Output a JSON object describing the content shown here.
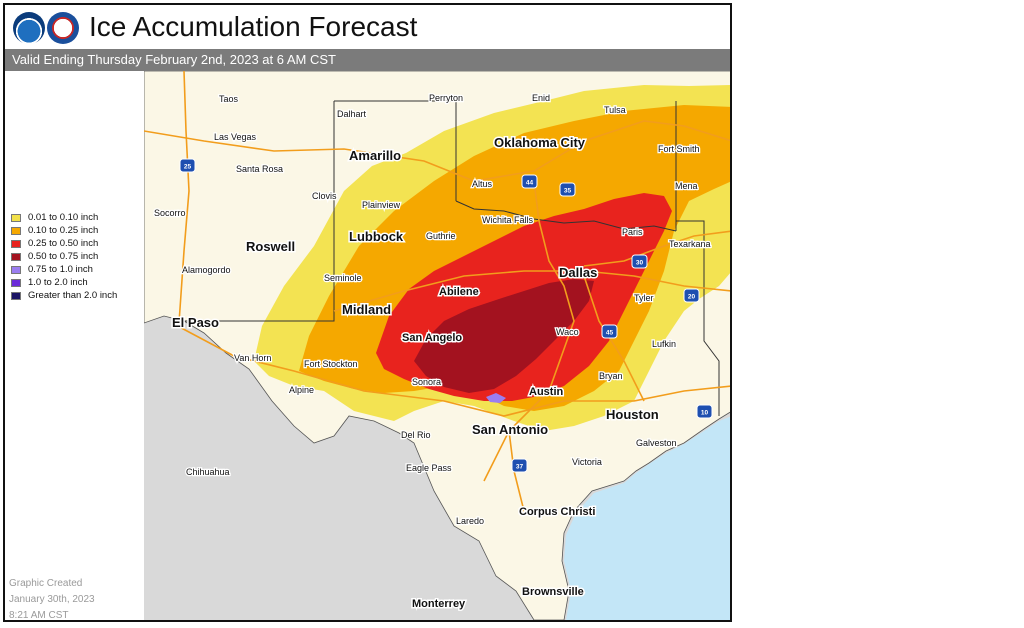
{
  "title": "Ice Accumulation Forecast",
  "valid": "Valid Ending Thursday February 2nd, 2023 at 6 AM CST",
  "logos": {
    "left": "noaa-logo",
    "right": "nws-logo"
  },
  "legend": [
    {
      "label": "0.01 to 0.10 inch",
      "color": "#f2e14a"
    },
    {
      "label": "0.10 to 0.25 inch",
      "color": "#f5a800"
    },
    {
      "label": "0.25 to 0.50 inch",
      "color": "#e8231e"
    },
    {
      "label": "0.50 to 0.75 inch",
      "color": "#a3121f"
    },
    {
      "label": "0.75 to 1.0 inch",
      "color": "#9b7ef0"
    },
    {
      "label": "1.0 to 2.0 inch",
      "color": "#6b2bd9"
    },
    {
      "label": "Greater than 2.0 inch",
      "color": "#1b1464"
    }
  ],
  "created": {
    "line1": "Graphic Created",
    "line2": "January 30th, 2023",
    "line3": "8:21 AM CST"
  },
  "cities_major": {
    "oklahoma_city": "Oklahoma City",
    "amarillo": "Amarillo",
    "lubbock": "Lubbock",
    "roswell": "Roswell",
    "dallas": "Dallas",
    "abilene": "Abilene",
    "midland": "Midland",
    "el_paso": "El Paso",
    "san_angelo": "San Angelo",
    "austin": "Austin",
    "san_antonio": "San Antonio",
    "houston": "Houston",
    "corpus_christi": "Corpus Christi",
    "brownsville": "Brownsville",
    "monterrey": "Monterrey"
  },
  "cities_minor": {
    "taos": "Taos",
    "dalhart": "Dalhart",
    "perryton": "Perryton",
    "enid": "Enid",
    "tulsa": "Tulsa",
    "las_vegas": "Las Vegas",
    "santa_rosa": "Santa Rosa",
    "fort_smith": "Fort Smith",
    "clovis": "Clovis",
    "altus": "Altus",
    "mena": "Mena",
    "plainview": "Plainview",
    "socorro": "Socorro",
    "wichita_falls": "Wichita Falls",
    "guthrie": "Guthrie",
    "paris": "Paris",
    "texarkana": "Texarkana",
    "alamogordo": "Alamogordo",
    "seminole": "Seminole",
    "tyler": "Tyler",
    "waco": "Waco",
    "van_horn": "Van Horn",
    "fort_stockton": "Fort Stockton",
    "lufkin": "Lufkin",
    "alpine": "Alpine",
    "sonora": "Sonora",
    "bryan": "Bryan",
    "del_rio": "Del Rio",
    "galveston": "Galveston",
    "eagle_pass": "Eagle Pass",
    "victoria": "Victoria",
    "chihuahua": "Chihuahua",
    "laredo": "Laredo"
  },
  "highways": {
    "i25": "25",
    "i44": "44",
    "i35": "35",
    "i30": "30",
    "i20": "20",
    "i45": "45",
    "i10": "10",
    "i37": "37"
  }
}
